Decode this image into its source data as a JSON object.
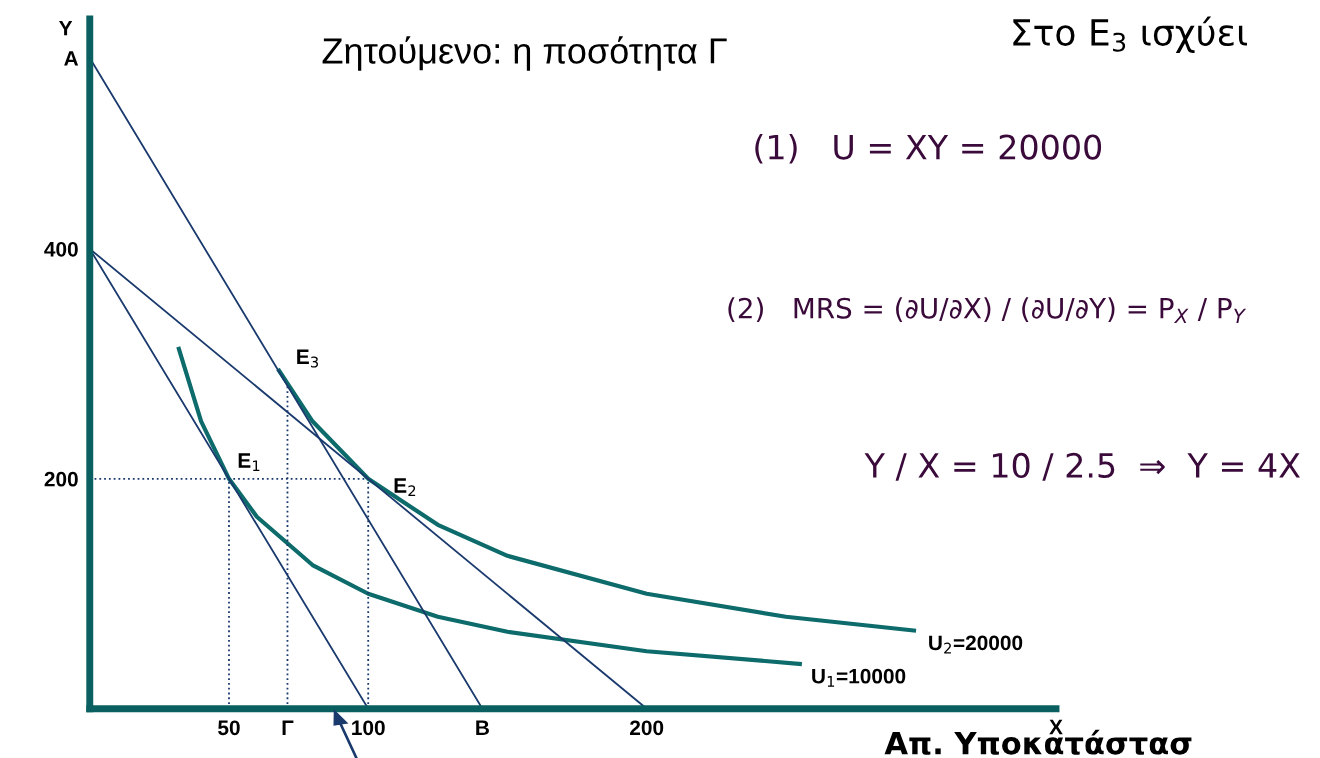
{
  "chart_data": {
    "type": "line",
    "title": "Ζητούμενο: η ποσότητα Γ",
    "xlabel": "X",
    "ylabel": "Y",
    "xlim": [
      0,
      347
    ],
    "ylim": [
      0,
      600
    ],
    "xticks": [
      50,
      {
        "value": 71,
        "label": "Γ"
      },
      100,
      {
        "value": 141,
        "label": "B"
      },
      200
    ],
    "yticks": [
      200,
      400,
      {
        "value": 566,
        "label": "A"
      }
    ],
    "grid": false,
    "legend": false,
    "series": [
      {
        "color": "#0d6b6b",
        "x": [
          32,
          40,
          50,
          60,
          80,
          100,
          125,
          150,
          200,
          255
        ],
        "values": [
          313,
          250,
          200,
          167,
          125,
          100,
          80,
          67,
          50,
          39
        ]
      },
      {
        "color": "#0d6b6b",
        "x": [
          68,
          71,
          80,
          100,
          125,
          150,
          200,
          250,
          296
        ],
        "values": [
          294,
          283,
          250,
          200,
          160,
          133,
          100,
          80,
          68
        ]
      },
      {
        "color": "#1a3a6e",
        "x": [
          0,
          100
        ],
        "values": [
          400,
          0
        ]
      },
      {
        "color": "#1a3a6e",
        "x": [
          0,
          200
        ],
        "values": [
          400,
          0
        ]
      },
      {
        "color": "#1a3a6e",
        "x": [
          0,
          141
        ],
        "values": [
          566,
          0
        ]
      },
      {
        "color": "#1a3a6e",
        "line_style": "dotted",
        "x": [
          50,
          50
        ],
        "values": [
          0,
          200
        ]
      },
      {
        "color": "#1a3a6e",
        "line_style": "dotted",
        "x": [
          0,
          100
        ],
        "values": [
          200,
          200
        ]
      },
      {
        "color": "#1a3a6e",
        "line_style": "dotted",
        "x": [
          71,
          71
        ],
        "values": [
          0,
          283
        ]
      },
      {
        "color": "#1a3a6e",
        "line_style": "dotted",
        "x": [
          100,
          100
        ],
        "values": [
          0,
          200
        ]
      }
    ],
    "annotations": [
      {
        "text": "E$_{1}$",
        "x": 50,
        "y": 200
      },
      {
        "text": "E$_{2}$",
        "x": 100,
        "y": 200
      },
      {
        "text": "E$_{3}$",
        "x": 71,
        "y": 283
      },
      {
        "text": "U$_{1}$=10000",
        "x": 255,
        "y": 39
      },
      {
        "text": "U$_{2}$=20000",
        "x": 296,
        "y": 68
      },
      "Στο E$_{3}$ ισχύει",
      "(1)   U = XY = 20000",
      "(2)   MRS = (∂U/∂X) / (∂U/∂Y) = P$_{X}$ / P$_{Y}$",
      "Y / X = 10 / 2.5  ⇒  Y = 4X",
      "Απ. Υποκατάστασ"
    ]
  }
}
